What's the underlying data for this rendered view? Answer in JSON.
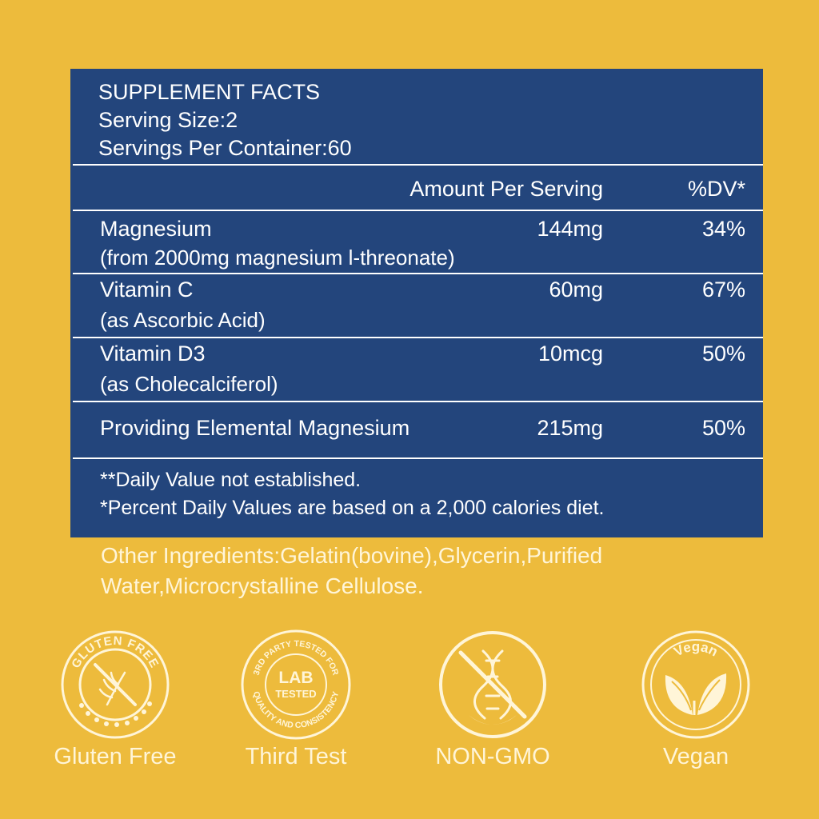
{
  "facts": {
    "title": "SUPPLEMENT FACTS",
    "serving_size": "Serving Size:2",
    "servings_per_container": "Servings Per Container:60",
    "col_amount": "Amount Per Serving",
    "col_dv": "%DV*",
    "rows": [
      {
        "name": "Magnesium",
        "sub": "(from 2000mg magnesium l-threonate)",
        "amount": "144mg",
        "dv": "34%"
      },
      {
        "name": "Vitamin C",
        "sub": "(as Ascorbic Acid)",
        "amount": "60mg",
        "dv": "67%"
      },
      {
        "name": "Vitamin D3",
        "sub": "(as Cholecalciferol)",
        "amount": "10mcg",
        "dv": "50%"
      },
      {
        "name": "Providing Elemental Magnesium",
        "sub": "",
        "amount": "215mg",
        "dv": "50%"
      }
    ],
    "note1": "**Daily Value not established.",
    "note2": "*Percent Daily Values are based on a 2,000 calories diet."
  },
  "other_ingredients": "Other Ingredients:Gelatin(bovine),Glycerin,Purified Water,Microcrystalline Cellulose.",
  "badges": [
    {
      "label": "Gluten Free",
      "ring_text": "GLUTEN FREE",
      "icon": "gluten-free-icon"
    },
    {
      "label": "Third Test",
      "ring_text_top": "3RD PARTY TESTED FOR",
      "ring_text_bottom": "QUALITY AND CONSISTENCY",
      "center_1": "LAB",
      "center_2": "TESTED",
      "icon": "lab-tested-icon"
    },
    {
      "label": "NON-GMO",
      "icon": "non-gmo-icon"
    },
    {
      "label": "Vegan",
      "ring_text": "Vegan",
      "icon": "vegan-leaf-icon"
    }
  ],
  "colors": {
    "background": "#EDBB3C",
    "panel": "#23457C",
    "badge": "#FFF5D8"
  }
}
